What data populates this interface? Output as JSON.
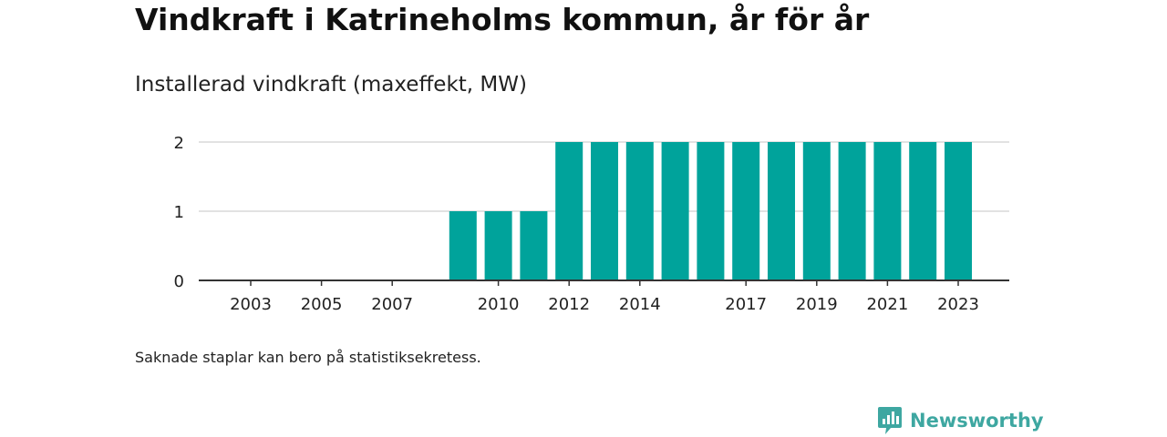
{
  "title": "Vindkraft i Katrineholms kommun, år för år",
  "subtitle": "Installerad vindkraft (maxeffekt, MW)",
  "note": "Saknade staplar kan bero på statistiksekretess.",
  "brand": {
    "name": "Newsworthy",
    "icon": "newsworthy-logo-icon"
  },
  "colors": {
    "bar": "#00a39b",
    "grid": "#d9d9d9",
    "axis": "#333333",
    "brand": "#3ea7a1"
  },
  "chart_data": {
    "type": "bar",
    "categories": [
      2002,
      2003,
      2004,
      2005,
      2006,
      2007,
      2008,
      2009,
      2010,
      2011,
      2012,
      2013,
      2014,
      2015,
      2016,
      2017,
      2018,
      2019,
      2020,
      2021,
      2022,
      2023
    ],
    "values": [
      0,
      0,
      0,
      0,
      0,
      0,
      0,
      1,
      1,
      1,
      2,
      2,
      2,
      2,
      2,
      2,
      2,
      2,
      2,
      2,
      2,
      2
    ],
    "x_tick_labels": [
      "2003",
      "2005",
      "2007",
      "2010",
      "2012",
      "2014",
      "2017",
      "2019",
      "2021",
      "2023"
    ],
    "y_ticks": [
      0,
      1,
      2
    ],
    "ylim": [
      0,
      2
    ],
    "title": "Installerad vindkraft (maxeffekt, MW)",
    "xlabel": "",
    "ylabel": "",
    "grid": true
  }
}
